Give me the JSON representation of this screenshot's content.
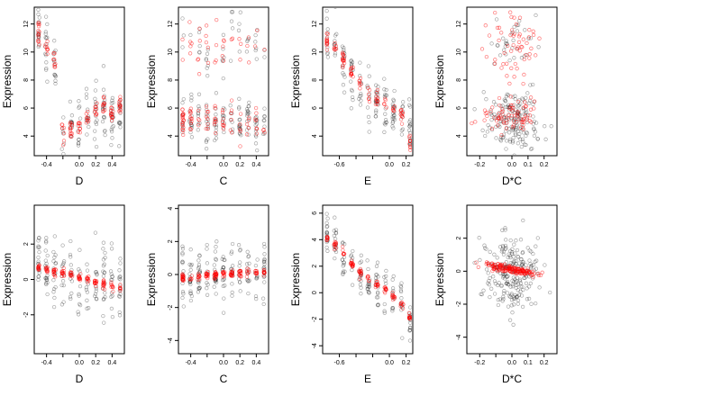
{
  "figure": {
    "colors": {
      "raw_points": "#000000",
      "fitted_points": "#ff0000",
      "background": "#ffffff"
    }
  },
  "chart_data": [
    {
      "type": "scatter",
      "xlabel": "D",
      "ylabel": "Expression",
      "xlim": [
        -0.55,
        0.55
      ],
      "ylim": [
        2.6,
        13.2
      ],
      "xticks": [
        -0.4,
        -0.2,
        0.0,
        0.2,
        0.4
      ],
      "xtick_labels": [
        "-0.4",
        "",
        "0.0",
        "0.2",
        "0.4"
      ],
      "yticks": [
        4,
        6,
        8,
        10,
        12
      ],
      "ytick_labels": [
        "4",
        "6",
        "8",
        "10",
        "12"
      ],
      "series": [
        {
          "role": "raw",
          "count": 150,
          "model": {
            "kind": "anchors",
            "anchors": [
              [
                -0.5,
                11.5
              ],
              [
                -0.4,
                10.5
              ],
              [
                -0.3,
                9.5
              ],
              [
                -0.2,
                4.0
              ],
              [
                -0.1,
                4.2
              ],
              [
                0.0,
                4.6
              ],
              [
                0.1,
                5.4
              ],
              [
                0.2,
                5.8
              ],
              [
                0.3,
                6.0
              ],
              [
                0.4,
                5.5
              ],
              [
                0.5,
                5.6
              ]
            ],
            "noise": 1.0
          }
        },
        {
          "role": "fitted",
          "count": 110,
          "model": {
            "kind": "anchors",
            "anchors": [
              [
                -0.5,
                11.2
              ],
              [
                -0.4,
                10.2
              ],
              [
                -0.3,
                9.3
              ],
              [
                -0.2,
                4.1
              ],
              [
                -0.1,
                4.3
              ],
              [
                0.0,
                4.8
              ],
              [
                0.1,
                5.4
              ],
              [
                0.2,
                5.8
              ],
              [
                0.3,
                6.0
              ],
              [
                0.4,
                5.5
              ],
              [
                0.5,
                6.2
              ]
            ],
            "noise": 0.35
          }
        }
      ]
    },
    {
      "type": "scatter",
      "xlabel": "C",
      "ylabel": "Expression",
      "xlim": [
        -0.55,
        0.55
      ],
      "ylim": [
        2.6,
        13.2
      ],
      "xticks": [
        -0.4,
        -0.2,
        0.0,
        0.2,
        0.4
      ],
      "xtick_labels": [
        "-0.4",
        "",
        "0.0",
        "0.2",
        "0.4"
      ],
      "yticks": [
        4,
        6,
        8,
        10,
        12
      ],
      "ytick_labels": [
        "4",
        "6",
        "8",
        "10",
        "12"
      ],
      "series": [
        {
          "role": "raw",
          "count": 170,
          "model": {
            "kind": "bimodal",
            "x_range": [
              -0.5,
              0.5
            ],
            "levels": [
              [
                5.0,
                0.8,
                0.75
              ],
              [
                10.5,
                1.4,
                0.25
              ]
            ]
          }
        },
        {
          "role": "fitted",
          "count": 120,
          "model": {
            "kind": "bimodal",
            "x_range": [
              -0.5,
              0.5
            ],
            "levels": [
              [
                5.0,
                0.6,
                0.7
              ],
              [
                10.5,
                1.2,
                0.3
              ]
            ]
          }
        }
      ]
    },
    {
      "type": "scatter",
      "xlabel": "E",
      "ylabel": "Expression",
      "xlim": [
        -0.8,
        0.28
      ],
      "ylim": [
        2.6,
        13.2
      ],
      "xticks": [
        -0.6,
        -0.4,
        -0.2,
        0.0,
        0.2
      ],
      "xtick_labels": [
        "-0.6",
        "",
        "",
        "0.0",
        "0.2"
      ],
      "yticks": [
        4,
        6,
        8,
        10,
        12
      ],
      "ytick_labels": [
        "4",
        "6",
        "8",
        "10",
        "12"
      ],
      "series": [
        {
          "role": "raw",
          "count": 150,
          "model": {
            "kind": "anchors",
            "anchors": [
              [
                -0.75,
                12.0
              ],
              [
                -0.65,
                11.0
              ],
              [
                -0.55,
                9.5
              ],
              [
                -0.45,
                8.0
              ],
              [
                -0.3,
                7.0
              ],
              [
                -0.1,
                6.5
              ],
              [
                0.0,
                6.0
              ],
              [
                0.1,
                5.5
              ],
              [
                0.2,
                5.0
              ],
              [
                0.25,
                4.0
              ]
            ],
            "noise": 0.9
          }
        },
        {
          "role": "fitted",
          "count": 100,
          "model": {
            "kind": "anchors",
            "anchors": [
              [
                -0.75,
                11.0
              ],
              [
                -0.6,
                10.0
              ],
              [
                -0.5,
                9.0
              ],
              [
                -0.4,
                8.2
              ],
              [
                -0.2,
                6.8
              ],
              [
                0.0,
                6.2
              ],
              [
                0.1,
                5.6
              ],
              [
                0.2,
                5.2
              ],
              [
                0.25,
                3.5
              ]
            ],
            "noise": 0.3
          }
        }
      ]
    },
    {
      "type": "scatter",
      "xlabel": "D*C",
      "ylabel": "Expression",
      "xlim": [
        -0.28,
        0.28
      ],
      "ylim": [
        2.6,
        13.2
      ],
      "xticks": [
        -0.2,
        -0.1,
        0.0,
        0.1,
        0.2
      ],
      "xtick_labels": [
        "-0.2",
        "",
        "0.0",
        "0.1",
        "0.2"
      ],
      "yticks": [
        4,
        6,
        8,
        10,
        12
      ],
      "ytick_labels": [
        "4",
        "6",
        "8",
        "10",
        "12"
      ],
      "series": [
        {
          "role": "raw",
          "count": 200,
          "model": {
            "kind": "bimodal",
            "x_range": [
              -0.25,
              0.25
            ],
            "center": true,
            "levels": [
              [
                5.2,
                1.0,
                0.8
              ],
              [
                10.5,
                1.2,
                0.2
              ]
            ]
          }
        },
        {
          "role": "fitted",
          "count": 130,
          "model": {
            "kind": "bimodal",
            "x_range": [
              -0.25,
              0.25
            ],
            "center": true,
            "levels": [
              [
                5.5,
                0.6,
                0.6
              ],
              [
                10.5,
                1.2,
                0.4
              ]
            ]
          }
        }
      ]
    },
    {
      "type": "scatter",
      "xlabel": "D",
      "ylabel": "Expression",
      "xlim": [
        -0.55,
        0.55
      ],
      "ylim": [
        -4.2,
        4.2
      ],
      "xticks": [
        -0.4,
        -0.2,
        0.0,
        0.2,
        0.4
      ],
      "xtick_labels": [
        "-0.4",
        "",
        "0.0",
        "0.2",
        "0.4"
      ],
      "yticks": [
        -2,
        0,
        2
      ],
      "ytick_labels": [
        "-2",
        "0",
        "2"
      ],
      "series": [
        {
          "role": "raw",
          "count": 160,
          "model": {
            "kind": "linear",
            "x_range": [
              -0.5,
              0.5
            ],
            "slope": -1.2,
            "intercept": 0.1,
            "noise": 1.1
          }
        },
        {
          "role": "fitted",
          "count": 120,
          "model": {
            "kind": "linear",
            "x_range": [
              -0.5,
              0.5
            ],
            "slope": -1.2,
            "intercept": 0.1,
            "noise": 0.12
          }
        }
      ]
    },
    {
      "type": "scatter",
      "xlabel": "C",
      "ylabel": "Expression",
      "xlim": [
        -0.55,
        0.55
      ],
      "ylim": [
        -4.8,
        4.2
      ],
      "xticks": [
        -0.4,
        -0.2,
        0.0,
        0.2,
        0.4
      ],
      "xtick_labels": [
        "-0.4",
        "",
        "0.0",
        "0.2",
        "0.4"
      ],
      "yticks": [
        -4,
        -2,
        0,
        2,
        4
      ],
      "ytick_labels": [
        "-4",
        "-2",
        "0",
        "2",
        "4"
      ],
      "series": [
        {
          "role": "raw",
          "count": 170,
          "model": {
            "kind": "linear",
            "x_range": [
              -0.5,
              0.5
            ],
            "slope": 0.4,
            "intercept": 0.0,
            "noise": 1.0
          }
        },
        {
          "role": "fitted",
          "count": 130,
          "model": {
            "kind": "linear",
            "x_range": [
              -0.5,
              0.5
            ],
            "slope": 0.4,
            "intercept": 0.0,
            "noise": 0.12
          }
        }
      ]
    },
    {
      "type": "scatter",
      "xlabel": "E",
      "ylabel": "Expression",
      "xlim": [
        -0.8,
        0.28
      ],
      "ylim": [
        -4.6,
        6.6
      ],
      "xticks": [
        -0.6,
        -0.4,
        -0.2,
        0.0,
        0.2
      ],
      "xtick_labels": [
        "-0.6",
        "",
        "",
        "0.0",
        "0.2"
      ],
      "yticks": [
        -4,
        -2,
        0,
        2,
        4,
        6
      ],
      "ytick_labels": [
        "-4",
        "-2",
        "0",
        "2",
        "4",
        "6"
      ],
      "series": [
        {
          "role": "raw",
          "count": 150,
          "model": {
            "kind": "anchors",
            "anchors": [
              [
                -0.75,
                4.8
              ],
              [
                -0.65,
                4.0
              ],
              [
                -0.55,
                3.0
              ],
              [
                -0.45,
                2.0
              ],
              [
                -0.3,
                1.0
              ],
              [
                -0.1,
                0.3
              ],
              [
                0.0,
                -0.2
              ],
              [
                0.1,
                -0.6
              ],
              [
                0.2,
                -1.2
              ],
              [
                0.25,
                -2.0
              ]
            ],
            "noise": 1.0
          }
        },
        {
          "role": "fitted",
          "count": 110,
          "model": {
            "kind": "anchors",
            "anchors": [
              [
                -0.75,
                4.2
              ],
              [
                -0.6,
                3.4
              ],
              [
                -0.5,
                2.6
              ],
              [
                -0.4,
                1.8
              ],
              [
                -0.2,
                0.8
              ],
              [
                0.0,
                0.0
              ],
              [
                0.1,
                -0.6
              ],
              [
                0.2,
                -1.2
              ],
              [
                0.25,
                -2.0
              ]
            ],
            "noise": 0.15
          }
        }
      ]
    },
    {
      "type": "scatter",
      "xlabel": "D*C",
      "ylabel": "Expression",
      "xlim": [
        -0.28,
        0.28
      ],
      "ylim": [
        -5.0,
        4.0
      ],
      "xticks": [
        -0.2,
        -0.1,
        0.0,
        0.1,
        0.2
      ],
      "xtick_labels": [
        "-0.2",
        "",
        "0.0",
        "0.1",
        "0.2"
      ],
      "yticks": [
        -4,
        -2,
        0,
        2
      ],
      "ytick_labels": [
        "-4",
        "-2",
        "0",
        "2"
      ],
      "series": [
        {
          "role": "raw",
          "count": 220,
          "model": {
            "kind": "linear",
            "x_range": [
              -0.25,
              0.25
            ],
            "center": true,
            "slope": -1.0,
            "intercept": 0.0,
            "noise": 1.1
          }
        },
        {
          "role": "fitted",
          "count": 150,
          "model": {
            "kind": "linear",
            "x_range": [
              -0.25,
              0.25
            ],
            "center": true,
            "slope": -1.8,
            "intercept": 0.1,
            "noise": 0.12
          }
        }
      ]
    }
  ]
}
